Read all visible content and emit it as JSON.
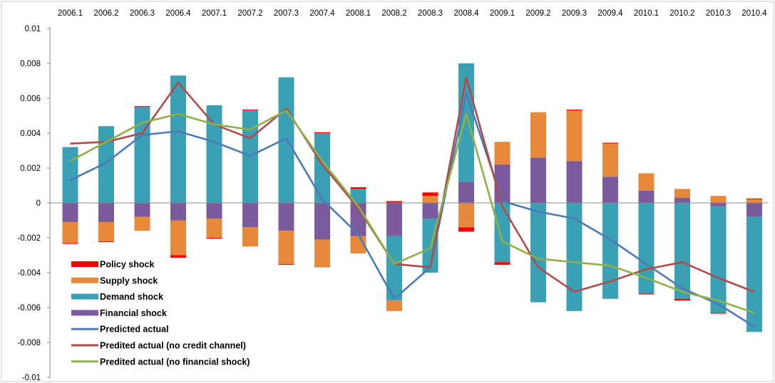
{
  "chart_data": {
    "type": "bar",
    "stacked": true,
    "categories": [
      "2006.1",
      "2006.2",
      "2006.3",
      "2006.4",
      "2007.1",
      "2007.2",
      "2007.3",
      "2007.4",
      "2008.1",
      "2008.2",
      "2008.3",
      "2008.4",
      "2009.1",
      "2009.2",
      "2009.3",
      "2009.4",
      "2010.1",
      "2010.2",
      "2010.3",
      "2010.4"
    ],
    "ylim": [
      -0.01,
      0.01
    ],
    "yticks": [
      -0.01,
      -0.008,
      -0.006,
      -0.004,
      -0.002,
      0,
      0.002,
      0.004,
      0.006,
      0.008,
      0.01
    ],
    "ytick_labels": [
      "-0.01",
      "-0.008",
      "-0.006",
      "-0.004",
      "-0.002",
      "0",
      "0.002",
      "0.004",
      "0.006",
      "0.008",
      "0.01"
    ],
    "x_axis_position": "top",
    "legend_position": "bottom-left",
    "grid": false,
    "bar_series": [
      {
        "name": "Policy shock",
        "color": "#ff0000",
        "values": [
          -5e-05,
          -5e-05,
          5e-05,
          -0.00015,
          -5e-05,
          5e-05,
          -5e-05,
          5e-05,
          0.0001,
          0.0001,
          0.0002,
          -0.00025,
          -0.00015,
          0,
          5e-05,
          5e-05,
          -5e-05,
          -0.0001,
          -5e-05,
          5e-05
        ]
      },
      {
        "name": "Supply shock",
        "color": "#e8883a",
        "values": [
          -0.0012,
          -0.0011,
          -0.0008,
          -0.002,
          -0.0011,
          -0.0011,
          -0.0019,
          -0.0016,
          -0.001,
          -0.0006,
          0.0004,
          -0.0014,
          0.0013,
          0.0026,
          0.0029,
          0.0019,
          0.001,
          0.0005,
          0.0004,
          0.0002
        ]
      },
      {
        "name": "Demand shock",
        "color": "#3aa0b4",
        "values": [
          0.0032,
          0.0044,
          0.0055,
          0.0073,
          0.0056,
          0.0053,
          0.0072,
          0.004,
          0.0008,
          -0.0037,
          -0.0031,
          0.0068,
          -0.0034,
          -0.0057,
          -0.0062,
          -0.0055,
          -0.0052,
          -0.0055,
          -0.0061,
          -0.0066
        ]
      },
      {
        "name": "Financial shock",
        "color": "#7b5a9e",
        "values": [
          -0.0011,
          -0.0011,
          -0.0008,
          -0.001,
          -0.0009,
          -0.0014,
          -0.0016,
          -0.0021,
          -0.0019,
          -0.0019,
          -0.0009,
          0.0012,
          0.0022,
          0.0026,
          0.0024,
          0.0015,
          0.0007,
          0.0003,
          -0.0002,
          -0.0008
        ]
      }
    ],
    "line_series": [
      {
        "name": "Predicted actual",
        "color": "#4a7ab8",
        "values": [
          0.0013,
          0.0023,
          0.0039,
          0.0041,
          0.0035,
          0.0027,
          0.0037,
          0.0002,
          -0.0018,
          -0.0055,
          -0.0037,
          0.0063,
          0.0001,
          -0.0005,
          -0.0009,
          -0.0021,
          -0.0035,
          -0.0049,
          -0.0058,
          -0.0071
        ]
      },
      {
        "name": "Predited actual (no credit channel)",
        "color": "#b14a48",
        "values": [
          0.0034,
          0.0035,
          0.004,
          0.0069,
          0.0045,
          0.0037,
          0.0054,
          0.0022,
          -0.0003,
          -0.0035,
          -0.0037,
          0.0072,
          -0.0002,
          -0.0037,
          -0.0051,
          -0.0045,
          -0.0038,
          -0.0034,
          -0.0043,
          -0.0051
        ]
      },
      {
        "name": "Predited actual (no financial shock)",
        "color": "#8fb04a",
        "values": [
          0.0024,
          0.0035,
          0.0046,
          0.0051,
          0.0045,
          0.0042,
          0.0053,
          0.0024,
          -0.0002,
          -0.0035,
          -0.0026,
          0.0051,
          -0.0022,
          -0.0032,
          -0.0034,
          -0.0036,
          -0.0043,
          -0.0051,
          -0.0056,
          -0.0063
        ]
      }
    ],
    "legend": [
      "Policy shock",
      "Supply shock",
      "Demand shock",
      "Financial shock",
      "Predicted actual",
      "Predited actual (no credit channel)",
      "Predited actual (no financial shock)"
    ],
    "axis_color": "#888888"
  }
}
